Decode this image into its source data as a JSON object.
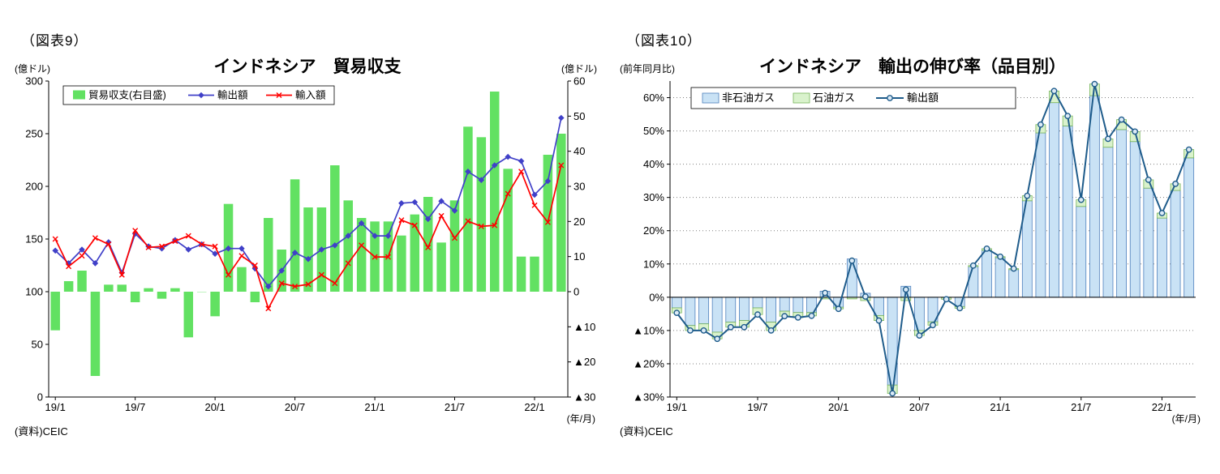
{
  "figure9": {
    "label": "（図表9）",
    "title": "インドネシア　貿易収支",
    "unit_left": "(億ドル)",
    "unit_right": "(億ドル)",
    "source": "(資料)CEIC",
    "axis_note": "(年/月)"
  },
  "figure10": {
    "label": "（図表10）",
    "title": "インドネシア　輸出の伸び率（品目別）",
    "unit_left": "(前年同月比)",
    "source": "(資料)CEIC",
    "axis_note": "(年/月)"
  },
  "chart_data": [
    {
      "id": "chart9",
      "type": "bar+line",
      "title": "インドネシア　貿易収支",
      "months": [
        "19/1",
        "19/2",
        "19/3",
        "19/4",
        "19/5",
        "19/6",
        "19/7",
        "19/8",
        "19/9",
        "19/10",
        "19/11",
        "19/12",
        "20/1",
        "20/2",
        "20/3",
        "20/4",
        "20/5",
        "20/6",
        "20/7",
        "20/8",
        "20/9",
        "20/10",
        "20/11",
        "20/12",
        "21/1",
        "21/2",
        "21/3",
        "21/4",
        "21/5",
        "21/6",
        "21/7",
        "21/8",
        "21/9",
        "21/10",
        "21/11",
        "21/12",
        "22/1",
        "22/2",
        "22/3"
      ],
      "x_tick_labels": [
        "19/1",
        "19/7",
        "20/1",
        "20/7",
        "21/1",
        "21/7",
        "22/1"
      ],
      "x_tick_indices": [
        0,
        6,
        12,
        18,
        24,
        30,
        36
      ],
      "left_axis": {
        "min": 0,
        "max": 300,
        "step": 50,
        "unit": "(億ドル)"
      },
      "right_axis": {
        "min": -30,
        "max": 60,
        "step": 10,
        "unit": "(億ドル)",
        "negative_prefix": "▲"
      },
      "legend_position": "top-left",
      "series": [
        {
          "name": "貿易収支(右目盛)",
          "type": "bar",
          "axis": "right",
          "color": "#62E162",
          "values": [
            -11,
            3,
            6,
            -24,
            2,
            2,
            -3,
            1,
            -2,
            1,
            -13,
            0,
            -7,
            25,
            7,
            -3,
            21,
            12,
            32,
            24,
            24,
            36,
            26,
            21,
            20,
            20,
            16,
            22,
            27,
            14,
            26,
            47,
            44,
            57,
            35,
            10,
            10,
            39,
            45
          ]
        },
        {
          "name": "輸出額",
          "type": "line",
          "marker": "diamond",
          "axis": "left",
          "color": "#4040C8",
          "values": [
            139,
            127,
            140,
            127,
            147,
            118,
            155,
            143,
            141,
            149,
            140,
            145,
            136,
            141,
            141,
            122,
            105,
            120,
            137,
            131,
            140,
            144,
            153,
            165,
            153,
            153,
            184,
            185,
            169,
            186,
            177,
            214,
            206,
            220,
            228,
            224,
            192,
            205,
            265
          ]
        },
        {
          "name": "輸入額",
          "type": "line",
          "marker": "x",
          "axis": "left",
          "color": "#FF0000",
          "values": [
            150,
            124,
            134,
            151,
            145,
            116,
            158,
            142,
            143,
            148,
            153,
            145,
            143,
            116,
            134,
            125,
            84,
            108,
            105,
            107,
            116,
            108,
            127,
            144,
            133,
            133,
            168,
            163,
            142,
            172,
            151,
            167,
            162,
            163,
            193,
            214,
            182,
            166,
            220
          ]
        }
      ]
    },
    {
      "id": "chart10",
      "type": "stacked-bar+line",
      "title": "インドネシア　輸出の伸び率（品目別）",
      "months": [
        "19/1",
        "19/2",
        "19/3",
        "19/4",
        "19/5",
        "19/6",
        "19/7",
        "19/8",
        "19/9",
        "19/10",
        "19/11",
        "19/12",
        "20/1",
        "20/2",
        "20/3",
        "20/4",
        "20/5",
        "20/6",
        "20/7",
        "20/8",
        "20/9",
        "20/10",
        "20/11",
        "20/12",
        "21/1",
        "21/2",
        "21/3",
        "21/4",
        "21/5",
        "21/6",
        "21/7",
        "21/8",
        "21/9",
        "21/10",
        "21/11",
        "21/12",
        "22/1",
        "22/2",
        "22/3"
      ],
      "x_tick_labels": [
        "19/1",
        "19/7",
        "20/1",
        "20/7",
        "21/1",
        "21/7",
        "22/1"
      ],
      "x_tick_indices": [
        0,
        6,
        12,
        18,
        24,
        30,
        36
      ],
      "y_axis": {
        "min": -30,
        "max": 65,
        "step": 10,
        "suffix": "%",
        "negative_prefix": "▲",
        "unit": "(前年同月比)",
        "grid": "dotted"
      },
      "legend_position": "top-center",
      "series": [
        {
          "name": "非石油ガス",
          "type": "bar",
          "color": "#C9E2F5",
          "border": "#4F81BD",
          "values": [
            -3.2,
            -8.5,
            -8.0,
            -10.5,
            -7.5,
            -7.0,
            -3.2,
            -7.5,
            -4.2,
            -4.6,
            -4.6,
            1.8,
            -3.0,
            11.5,
            1.2,
            -5.5,
            -26.4,
            3.3,
            -10.0,
            -7.4,
            -0.1,
            -2.8,
            9.2,
            14.1,
            11.9,
            8.3,
            29.0,
            49.4,
            58.5,
            51.5,
            27.3,
            60.6,
            45.1,
            50.4,
            46.8,
            32.8,
            23.8,
            32.1,
            41.9
          ]
        },
        {
          "name": "石油ガス",
          "type": "bar",
          "color": "#D9F2CC",
          "border": "#77B55A",
          "values": [
            -1.5,
            -1.5,
            -2.0,
            -2.0,
            -1.5,
            -2.0,
            -2.0,
            -2.5,
            -1.5,
            -1.5,
            -1.0,
            -0.5,
            -0.5,
            -0.5,
            -1.0,
            -1.5,
            -2.5,
            -1.0,
            -1.5,
            -1.0,
            -0.5,
            -0.5,
            0.3,
            0.5,
            0.3,
            0.3,
            1.5,
            2.5,
            3.5,
            3.0,
            2.0,
            3.5,
            2.5,
            3.0,
            3.0,
            2.5,
            1.5,
            2.0,
            2.5
          ]
        },
        {
          "name": "輸出額",
          "type": "line",
          "marker": "circle",
          "color": "#1F5C8B",
          "marker_fill": "#DCEBF7",
          "values": [
            -4.7,
            -10.0,
            -10.0,
            -12.5,
            -9.0,
            -9.0,
            -5.2,
            -10.0,
            -5.7,
            -6.1,
            -5.6,
            1.3,
            -3.5,
            11.0,
            0.2,
            -7.0,
            -28.9,
            2.3,
            -11.5,
            -8.4,
            -0.6,
            -3.3,
            9.5,
            14.6,
            12.2,
            8.6,
            30.5,
            51.9,
            62.0,
            54.5,
            29.3,
            64.1,
            47.6,
            53.4,
            49.8,
            35.3,
            25.3,
            34.1,
            44.4
          ]
        }
      ]
    }
  ]
}
